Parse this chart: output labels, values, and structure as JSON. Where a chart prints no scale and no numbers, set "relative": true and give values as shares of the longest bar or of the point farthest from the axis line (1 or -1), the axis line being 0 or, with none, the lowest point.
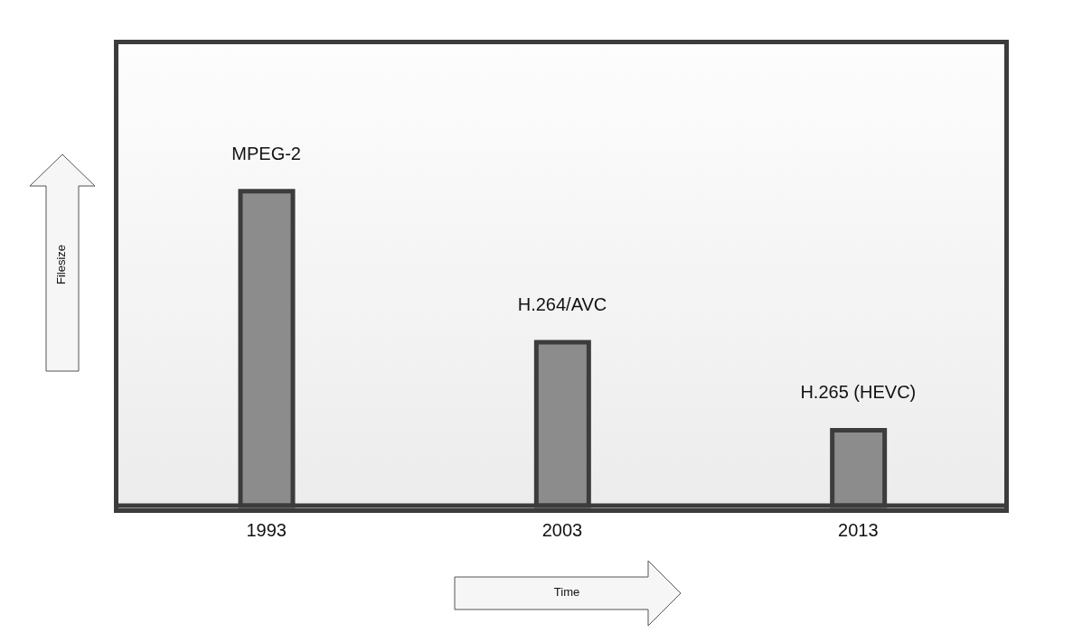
{
  "chart_data": {
    "type": "bar",
    "relative": true,
    "categories": [
      "1993",
      "2003",
      "2013"
    ],
    "values": [
      1,
      0.52,
      0.24
    ],
    "color": "#8c8c8c",
    "xlabel": "Time",
    "ylabel": "Filesize",
    "annotations": [
      {
        "text": "MPEG-2",
        "x": "1993",
        "y": 1
      },
      {
        "text": "H.264/AVC",
        "x": "2003",
        "y": 0.52
      },
      {
        "text": "H.265 (HEVC)",
        "x": "2013",
        "y": 0.24
      }
    ]
  }
}
